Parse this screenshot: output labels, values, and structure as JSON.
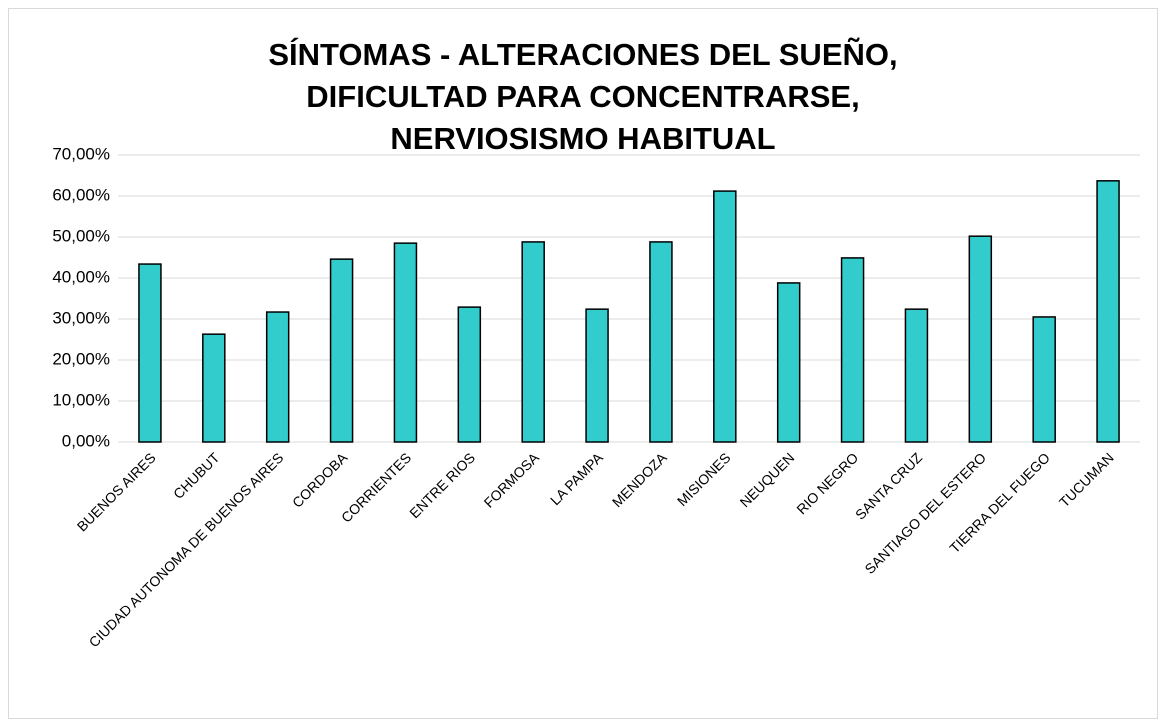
{
  "chart_data": {
    "type": "bar",
    "title": "SÍNTOMAS - ALTERACIONES DEL SUEÑO, DIFICULTAD PARA CONCENTRARSE, NERVIOSISMO HABITUAL",
    "categories": [
      "BUENOS AIRES",
      "CHUBUT",
      "CIUDAD AUTONOMA DE BUENOS AIRES",
      "CORDOBA",
      "CORRIENTES",
      "ENTRE RIOS",
      "FORMOSA",
      "LA PAMPA",
      "MENDOZA",
      "MISIONES",
      "NEUQUEN",
      "RIO NEGRO",
      "SANTA CRUZ",
      "SANTIAGO DEL ESTERO",
      "TIERRA DEL FUEGO",
      "TUCUMAN"
    ],
    "values": [
      43.4,
      26.3,
      31.7,
      44.6,
      48.5,
      32.9,
      48.8,
      32.4,
      48.8,
      61.2,
      38.8,
      44.9,
      32.4,
      50.2,
      30.5,
      63.7
    ],
    "color": "#33cccc",
    "ylim": [
      0,
      70
    ],
    "yticks": [
      {
        "value": 0,
        "label": "0,00%"
      },
      {
        "value": 10,
        "label": "10,00%"
      },
      {
        "value": 20,
        "label": "20,00%"
      },
      {
        "value": 30,
        "label": "30,00%"
      },
      {
        "value": 40,
        "label": "40,00%"
      },
      {
        "value": 50,
        "label": "50,00%"
      },
      {
        "value": 60,
        "label": "60,00%"
      },
      {
        "value": 70,
        "label": "70,00%"
      }
    ],
    "grid": true
  }
}
